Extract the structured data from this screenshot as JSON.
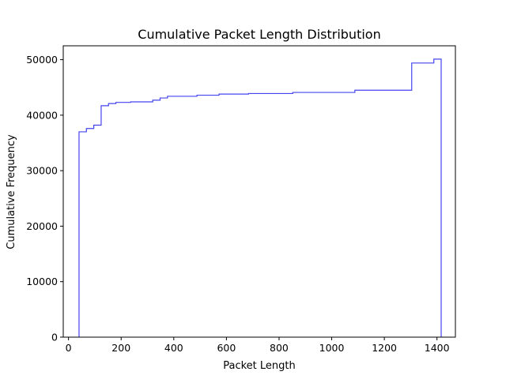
{
  "chart_data": {
    "type": "line",
    "style": "step",
    "title": "Cumulative Packet Length Distribution",
    "xlabel": "Packet Length",
    "ylabel": "Cumulative Frequency",
    "xlim": [
      -20,
      1470
    ],
    "ylim": [
      0,
      52500
    ],
    "xticks": [
      0,
      200,
      400,
      600,
      800,
      1000,
      1200,
      1400
    ],
    "yticks": [
      0,
      10000,
      20000,
      30000,
      40000,
      50000
    ],
    "grid": false,
    "legend": false,
    "line_color": "#4444ee",
    "series": [
      {
        "bin_edges": [
          40,
          68,
          96,
          124,
          152,
          180,
          236,
          320,
          348,
          376,
          488,
          572,
          684,
          852,
          1088,
          1304,
          1388,
          1416
        ],
        "values": [
          37000,
          37600,
          38200,
          41700,
          42100,
          42300,
          42400,
          42700,
          43100,
          43400,
          43600,
          43800,
          43900,
          44100,
          44500,
          49400,
          50100
        ]
      }
    ]
  }
}
